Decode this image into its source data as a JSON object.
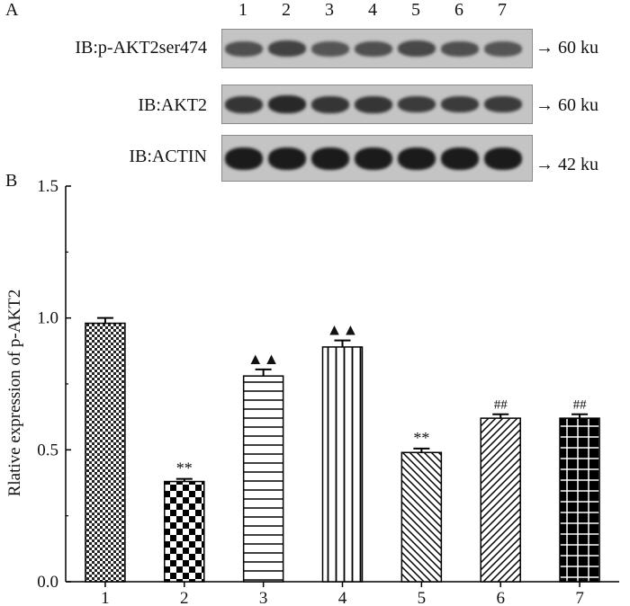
{
  "panel_a": {
    "letter": "A",
    "lanes": [
      "1",
      "2",
      "3",
      "4",
      "5",
      "6",
      "7"
    ],
    "blots": [
      {
        "label": "IB:p-AKT2ser474",
        "marker": "→ 60 ku",
        "intensity": [
          0.55,
          0.65,
          0.5,
          0.55,
          0.6,
          0.55,
          0.5
        ]
      },
      {
        "label": "IB:AKT2",
        "marker": "→ 60 ku",
        "intensity": [
          0.75,
          0.85,
          0.75,
          0.75,
          0.7,
          0.7,
          0.7
        ]
      },
      {
        "label": "IB:ACTIN",
        "marker": "→ 42 ku",
        "intensity": [
          0.95,
          0.95,
          0.95,
          0.95,
          0.95,
          0.95,
          0.95
        ]
      }
    ]
  },
  "chart_data": {
    "type": "bar",
    "panel_letter": "B",
    "categories": [
      "1",
      "2",
      "3",
      "4",
      "5",
      "6",
      "7"
    ],
    "values": [
      0.98,
      0.38,
      0.78,
      0.89,
      0.49,
      0.62,
      0.62
    ],
    "errors": [
      0.02,
      0.01,
      0.025,
      0.025,
      0.015,
      0.015,
      0.015
    ],
    "patterns": [
      "checker-fine",
      "checker-large",
      "horizontal-lines",
      "vertical-lines",
      "diagonal-back",
      "diagonal-forward",
      "grid-on-black"
    ],
    "annotations": [
      "",
      "**",
      "▲▲",
      "▲▲",
      "**",
      "##",
      "##"
    ],
    "ylabel": "Rlative expression of p-AKT2",
    "xlabel": "",
    "ylim": [
      0,
      1.5
    ],
    "yticks": [
      "0.0",
      "0.5",
      "1.0",
      "1.5"
    ],
    "grid": false,
    "legend": "none"
  }
}
